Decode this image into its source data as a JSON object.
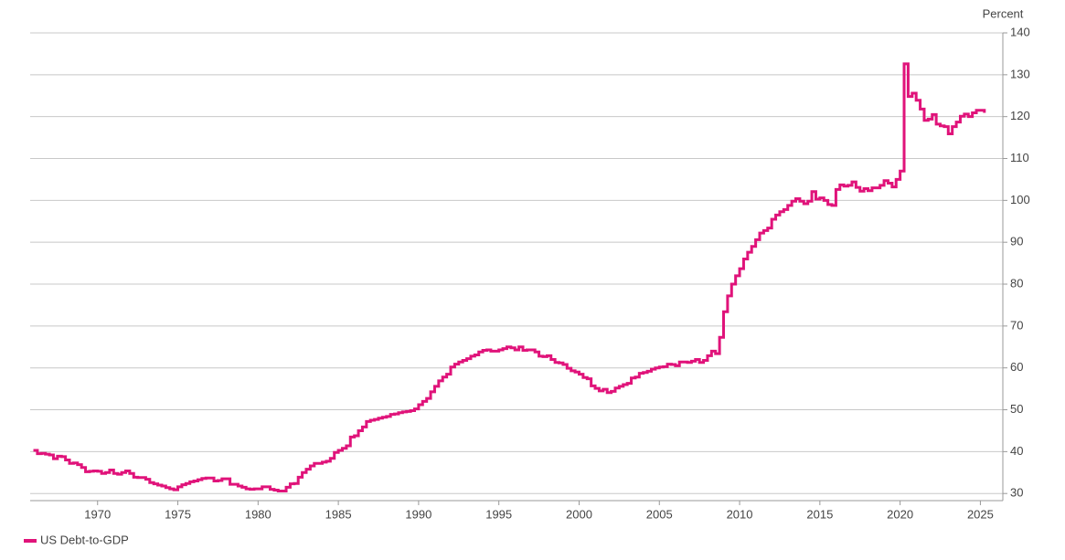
{
  "chart_data": {
    "type": "line",
    "step": true,
    "y_axis_label": "Percent",
    "y_axis_side": "right",
    "grid": true,
    "legend": "bottom-left",
    "xlim": [
      1965.8,
      2026.4
    ],
    "ylim": [
      28.3,
      140
    ],
    "xticks": [
      1970,
      1975,
      1980,
      1985,
      1990,
      1995,
      2000,
      2005,
      2010,
      2015,
      2020,
      2025
    ],
    "yticks": [
      30,
      40,
      50,
      60,
      70,
      80,
      90,
      100,
      110,
      120,
      130,
      140
    ],
    "x": [
      1966,
      1966.25,
      1966.5,
      1966.75,
      1967,
      1967.25,
      1967.5,
      1967.75,
      1968,
      1968.25,
      1968.5,
      1968.75,
      1969,
      1969.25,
      1969.5,
      1969.75,
      1970,
      1970.25,
      1970.5,
      1970.75,
      1971,
      1971.25,
      1971.5,
      1971.75,
      1972,
      1972.25,
      1972.5,
      1972.75,
      1973,
      1973.25,
      1973.5,
      1973.75,
      1974,
      1974.25,
      1974.5,
      1974.75,
      1975,
      1975.25,
      1975.5,
      1975.75,
      1976,
      1976.25,
      1976.5,
      1976.75,
      1977,
      1977.25,
      1977.5,
      1977.75,
      1978,
      1978.25,
      1978.5,
      1978.75,
      1979,
      1979.25,
      1979.5,
      1979.75,
      1980,
      1980.25,
      1980.5,
      1980.75,
      1981,
      1981.25,
      1981.5,
      1981.75,
      1982,
      1982.25,
      1982.5,
      1982.75,
      1983,
      1983.25,
      1983.5,
      1983.75,
      1984,
      1984.25,
      1984.5,
      1984.75,
      1985,
      1985.25,
      1985.5,
      1985.75,
      1986,
      1986.25,
      1986.5,
      1986.75,
      1987,
      1987.25,
      1987.5,
      1987.75,
      1988,
      1988.25,
      1988.5,
      1988.75,
      1989,
      1989.25,
      1989.5,
      1989.75,
      1990,
      1990.25,
      1990.5,
      1990.75,
      1991,
      1991.25,
      1991.5,
      1991.75,
      1992,
      1992.25,
      1992.5,
      1992.75,
      1993,
      1993.25,
      1993.5,
      1993.75,
      1994,
      1994.25,
      1994.5,
      1994.75,
      1995,
      1995.25,
      1995.5,
      1995.75,
      1996,
      1996.25,
      1996.5,
      1996.75,
      1997,
      1997.25,
      1997.5,
      1997.75,
      1998,
      1998.25,
      1998.5,
      1998.75,
      1999,
      1999.25,
      1999.5,
      1999.75,
      2000,
      2000.25,
      2000.5,
      2000.75,
      2001,
      2001.25,
      2001.5,
      2001.75,
      2002,
      2002.25,
      2002.5,
      2002.75,
      2003,
      2003.25,
      2003.5,
      2003.75,
      2004,
      2004.25,
      2004.5,
      2004.75,
      2005,
      2005.25,
      2005.5,
      2005.75,
      2006,
      2006.25,
      2006.5,
      2006.75,
      2007,
      2007.25,
      2007.5,
      2007.75,
      2008,
      2008.25,
      2008.5,
      2008.75,
      2009,
      2009.25,
      2009.5,
      2009.75,
      2010,
      2010.25,
      2010.5,
      2010.75,
      2011,
      2011.25,
      2011.5,
      2011.75,
      2012,
      2012.25,
      2012.5,
      2012.75,
      2013,
      2013.25,
      2013.5,
      2013.75,
      2014,
      2014.25,
      2014.5,
      2014.75,
      2015,
      2015.25,
      2015.5,
      2015.75,
      2016,
      2016.25,
      2016.5,
      2016.75,
      2017,
      2017.25,
      2017.5,
      2017.75,
      2018,
      2018.25,
      2018.5,
      2018.75,
      2019,
      2019.25,
      2019.5,
      2019.75,
      2020,
      2020.25,
      2020.5,
      2020.75,
      2021,
      2021.25,
      2021.5,
      2021.75,
      2022,
      2022.25,
      2022.5,
      2022.75,
      2023,
      2023.25,
      2023.5,
      2023.75,
      2024,
      2024.25,
      2024.5,
      2024.75,
      2025,
      2025.25
    ],
    "series": [
      {
        "name": "US Debt-to-GDP",
        "color": "#e0137a",
        "values": [
          40.3,
          39.5,
          39.6,
          39.4,
          39.2,
          38.3,
          38.9,
          38.8,
          38.0,
          37.2,
          37.3,
          36.9,
          36.2,
          35.2,
          35.3,
          35.4,
          35.3,
          34.8,
          35.0,
          35.6,
          34.8,
          34.6,
          35.0,
          35.4,
          34.8,
          33.9,
          33.8,
          33.8,
          33.4,
          32.6,
          32.3,
          32.0,
          31.8,
          31.4,
          31.1,
          30.9,
          31.6,
          32.1,
          32.4,
          32.8,
          33.0,
          33.3,
          33.6,
          33.7,
          33.7,
          33.0,
          33.1,
          33.5,
          33.5,
          32.2,
          32.2,
          31.8,
          31.5,
          31.1,
          31.0,
          31.1,
          31.1,
          31.6,
          31.6,
          31.0,
          30.8,
          30.6,
          30.6,
          31.5,
          32.3,
          32.4,
          33.9,
          35.0,
          35.8,
          36.6,
          37.2,
          37.2,
          37.5,
          37.7,
          38.4,
          39.8,
          40.3,
          40.8,
          41.4,
          43.5,
          43.8,
          45.0,
          45.9,
          47.2,
          47.5,
          47.7,
          48.0,
          48.2,
          48.4,
          48.9,
          49.0,
          49.3,
          49.5,
          49.6,
          49.8,
          50.2,
          51.2,
          52.0,
          52.7,
          54.3,
          55.6,
          56.9,
          57.8,
          58.5,
          60.2,
          60.9,
          61.4,
          61.8,
          62.2,
          62.8,
          63.1,
          63.8,
          64.2,
          64.3,
          64.0,
          64.0,
          64.3,
          64.6,
          65.0,
          64.8,
          64.3,
          65.0,
          64.2,
          64.3,
          64.3,
          63.8,
          62.8,
          62.7,
          62.9,
          62.0,
          61.3,
          61.2,
          60.8,
          59.9,
          59.3,
          59.0,
          58.5,
          57.7,
          57.4,
          55.7,
          55.1,
          54.5,
          54.9,
          54.1,
          54.4,
          55.2,
          55.6,
          56.0,
          56.3,
          57.6,
          57.8,
          58.7,
          58.9,
          59.2,
          59.7,
          60.0,
          60.2,
          60.3,
          60.9,
          60.8,
          60.5,
          61.4,
          61.4,
          61.3,
          61.6,
          62.0,
          61.3,
          61.8,
          62.9,
          64.0,
          63.4,
          67.3,
          73.4,
          77.2,
          80.0,
          82.0,
          83.7,
          86.0,
          87.6,
          89.0,
          90.6,
          92.2,
          92.8,
          93.4,
          95.5,
          96.5,
          97.3,
          97.8,
          98.8,
          99.8,
          100.4,
          99.8,
          99.2,
          99.8,
          102.1,
          100.3,
          100.6,
          100.0,
          99.0,
          98.8,
          102.6,
          103.7,
          103.4,
          103.6,
          104.4,
          103.1,
          102.2,
          102.8,
          102.3,
          103.0,
          103.0,
          103.6,
          104.7,
          104.1,
          103.2,
          105.0,
          107.0,
          132.6,
          124.8,
          125.6,
          123.9,
          121.8,
          119.1,
          119.4,
          120.5,
          118.2,
          117.8,
          117.6,
          115.9,
          117.6,
          118.7,
          120.1,
          120.6,
          120.0,
          120.9,
          121.5,
          121.5,
          120.9
        ]
      }
    ]
  }
}
